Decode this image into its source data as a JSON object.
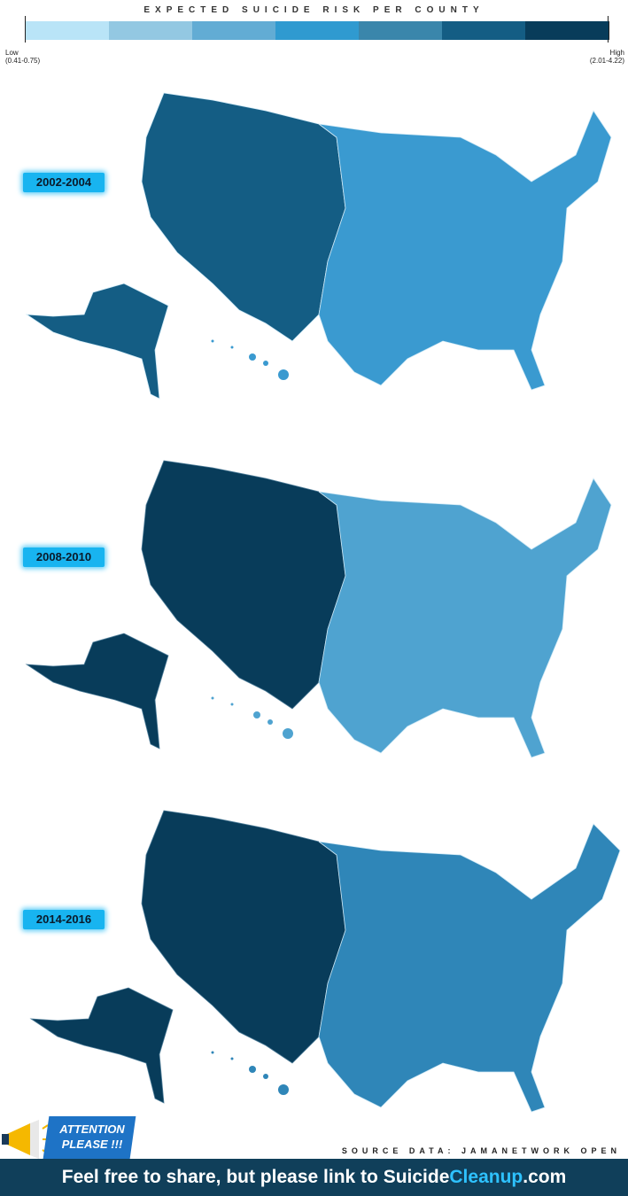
{
  "legend": {
    "title": "EXPECTED SUICIDE RISK PER COUNTY",
    "low_label": "Low",
    "low_range": "(0.41-0.75)",
    "high_label": "High",
    "high_range": "(2.01-4.22)",
    "colors": [
      "#b9e4f7",
      "#93c8e2",
      "#62acd4",
      "#2f9ad0",
      "#3a86ab",
      "#145d84",
      "#083c5a"
    ]
  },
  "maps": [
    {
      "period": "2002-2004",
      "west_color": "#145d84",
      "east_color": "#3a9ad0",
      "alaska_color": "#145d84"
    },
    {
      "period": "2008-2010",
      "west_color": "#083c5a",
      "east_color": "#4fa3d0",
      "alaska_color": "#083c5a"
    },
    {
      "period": "2014-2016",
      "west_color": "#083c5a",
      "east_color": "#2f86b8",
      "alaska_color": "#083c5a"
    }
  ],
  "source": "SOURCE DATA:  JAMANETWORK OPEN",
  "attention": {
    "line1": "ATTENTION",
    "line2": "PLEASE !!!"
  },
  "footer": {
    "text": "Feel free to share, but please link to ",
    "brand": "Suicide",
    "brand_accent": "Cleanup",
    "brand_tld": ".com"
  }
}
